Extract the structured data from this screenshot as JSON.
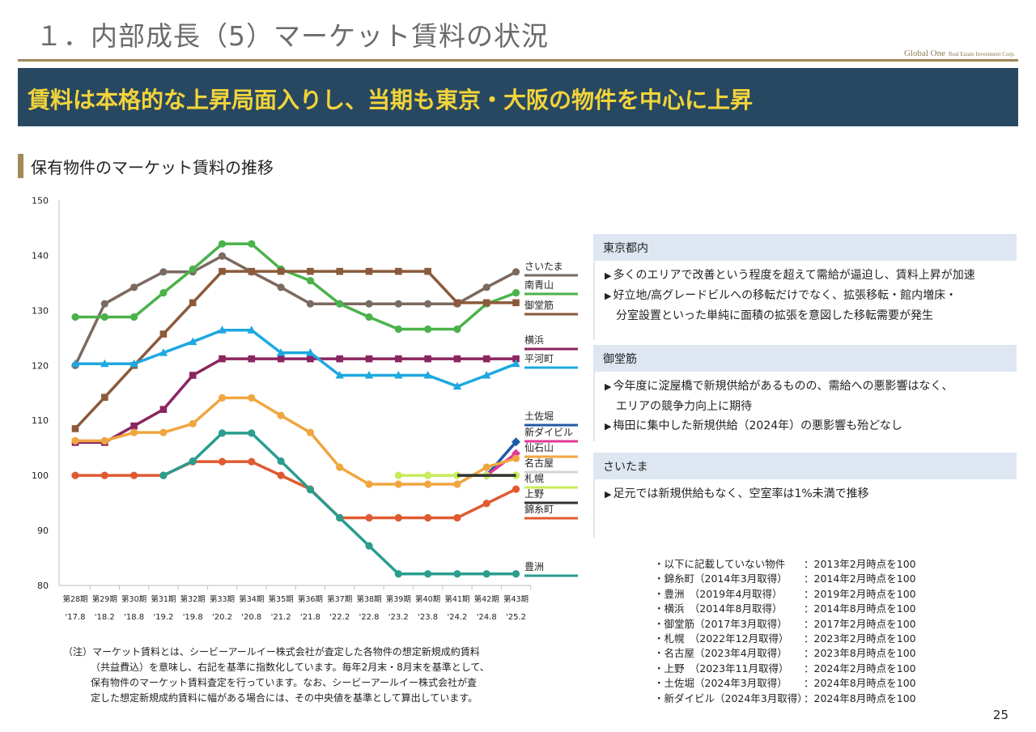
{
  "slide": {
    "title": "１．内部成長（5）マーケット賃料の状況",
    "brand_main": "Global One",
    "brand_sub": "Real Estate Investment Corp.",
    "headline": "賃料は本格的な上昇局面入りし、当期も東京・大阪の物件を中心に上昇",
    "section_title": "保有物件のマーケット賃料の推移",
    "page_number": "25"
  },
  "panels": [
    {
      "title": "東京都内",
      "bullets": [
        {
          "lines": [
            "多くのエリアで改善という程度を超えて需給が逼迫し、賃料上昇が加速"
          ]
        },
        {
          "lines": [
            "好立地/高グレードビルへの移転だけでなく、拡張移転・館内増床・",
            "分室設置といった単純に面積の拡張を意図した移転需要が発生"
          ]
        }
      ]
    },
    {
      "title": "御堂筋",
      "bullets": [
        {
          "lines": [
            "今年度に淀屋橋で新規供給があるものの、需給への悪影響はなく、",
            "エリアの競争力向上に期待"
          ]
        },
        {
          "lines": [
            "梅田に集中した新規供給（2024年）の悪影響も殆どなし"
          ]
        }
      ]
    },
    {
      "title": "さいたま",
      "bullets": [
        {
          "lines": [
            "足元では新規供給もなく、空室率は1%未満で推移"
          ]
        }
      ]
    }
  ],
  "notes": [
    {
      "left": "・以下に記載していない物件",
      "right": "：2013年2月時点を100"
    },
    {
      "left": "・錦糸町（2014年3月取得）",
      "right": "：2014年2月時点を100"
    },
    {
      "left": "・豊洲　（2019年4月取得）",
      "right": "：2019年2月時点を100"
    },
    {
      "left": "・横浜　（2014年8月取得）",
      "right": "：2014年8月時点を100"
    },
    {
      "left": "・御堂筋（2017年3月取得）",
      "right": "：2017年2月時点を100"
    },
    {
      "left": "・札幌　（2022年12月取得）",
      "right": "：2023年2月時点を100"
    },
    {
      "left": "・名古屋（2023年4月取得）",
      "right": "：2023年8月時点を100"
    },
    {
      "left": "・上野　（2023年11月取得）",
      "right": "：2024年2月時点を100"
    },
    {
      "left": "・土佐堀（2024年3月取得）",
      "right": "：2024年8月時点を100"
    },
    {
      "left": "・新ダイビル（2024年3月取得）",
      "right": "：2024年8月時点を100"
    }
  ],
  "footnote": [
    "（注）マーケット賃料とは、シービーアールイー株式会社が査定した各物件の想定新規成約賃料",
    "（共益費込）を意味し、右記を基準に指数化しています。毎年2月末・8月末を基準として、",
    "保有物件のマーケット賃料査定を行っています。なお、シービーアールイー株式会社が査",
    "定した想定新規成約賃料に幅がある場合には、その中央値を基準として算出しています。"
  ],
  "chart_data": {
    "type": "line",
    "title": "",
    "xlabel": "",
    "ylabel": "",
    "ylim": [
      80,
      150
    ],
    "yticks": [
      80,
      90,
      100,
      110,
      120,
      130,
      140,
      150
    ],
    "categories": [
      "第28期",
      "第29期",
      "第30期",
      "第31期",
      "第32期",
      "第33期",
      "第34期",
      "第35期",
      "第36期",
      "第37期",
      "第38期",
      "第39期",
      "第40期",
      "第41期",
      "第42期",
      "第43期"
    ],
    "categories_dates": [
      "'17.8",
      "'18.2",
      "'18.8",
      "'19.2",
      "'19.8",
      "'20.2",
      "'20.8",
      "'21.2",
      "'21.8",
      "'22.2",
      "'22.8",
      "'23.2",
      "'23.8",
      "'24.2",
      "'24.8",
      "'25.2"
    ],
    "grid": false,
    "legend": "right",
    "series": [
      {
        "name": "さいたま",
        "color": "#7b6a60",
        "marker": "circle",
        "values": [
          120,
          131.2,
          134.2,
          137,
          137,
          139.9,
          137,
          134.2,
          131.2,
          131.2,
          131.2,
          131.2,
          131.2,
          131.2,
          134.2,
          137
        ]
      },
      {
        "name": "南青山",
        "color": "#4ab24a",
        "marker": "circle",
        "values": [
          128.8,
          128.8,
          128.8,
          133.2,
          137.5,
          142.1,
          142.1,
          137.5,
          135.4,
          131.2,
          128.8,
          126.6,
          126.6,
          126.6,
          131.2,
          133.2
        ]
      },
      {
        "name": "御堂筋",
        "color": "#8b5a3a",
        "marker": "square",
        "values": [
          108.5,
          114.2,
          120,
          125.7,
          131.4,
          137.1,
          137.1,
          137.1,
          137.1,
          137.1,
          137.1,
          137.1,
          137.1,
          131.4,
          131.4,
          131.4
        ]
      },
      {
        "name": "横浜",
        "color": "#8b2560",
        "marker": "square",
        "values": [
          106,
          106,
          109,
          112,
          118.2,
          121.2,
          121.2,
          121.2,
          121.2,
          121.2,
          121.2,
          121.2,
          121.2,
          121.2,
          121.2,
          121.2
        ]
      },
      {
        "name": "平河町",
        "color": "#1ea8e0",
        "marker": "triangle",
        "values": [
          120.3,
          120.3,
          120.3,
          122.3,
          124.3,
          126.4,
          126.4,
          122.3,
          122.3,
          118.2,
          118.2,
          118.2,
          118.2,
          116.2,
          118.2,
          120.3
        ]
      },
      {
        "name": "土佐堀",
        "color": "#1e5aa8",
        "marker": "diamond",
        "values": [
          null,
          null,
          null,
          null,
          null,
          null,
          null,
          null,
          null,
          null,
          null,
          null,
          null,
          null,
          100,
          106.1
        ]
      },
      {
        "name": "新ダイビル",
        "color": "#e0389a",
        "marker": "diamond",
        "values": [
          null,
          null,
          null,
          null,
          null,
          null,
          null,
          null,
          null,
          null,
          null,
          null,
          null,
          null,
          100,
          104
        ]
      },
      {
        "name": "仙石山",
        "color": "#f0a640",
        "marker": "circle",
        "values": [
          106.3,
          106.3,
          107.8,
          107.8,
          109.4,
          114.1,
          114.1,
          110.9,
          107.8,
          101.5,
          98.4,
          98.4,
          98.4,
          98.4,
          101.5,
          103.1
        ]
      },
      {
        "name": "名古屋",
        "color": "#d4d4d4",
        "marker": "circle",
        "values": [
          null,
          null,
          null,
          null,
          null,
          null,
          null,
          null,
          null,
          null,
          null,
          null,
          100,
          100,
          100,
          100
        ]
      },
      {
        "name": "札幌",
        "color": "#c8ec5a",
        "marker": "circle",
        "values": [
          null,
          null,
          null,
          null,
          null,
          null,
          null,
          null,
          null,
          null,
          null,
          100,
          100,
          100,
          100,
          100
        ]
      },
      {
        "name": "上野",
        "color": "#333333",
        "marker": "none",
        "values": [
          null,
          null,
          null,
          null,
          null,
          null,
          null,
          null,
          null,
          null,
          null,
          null,
          null,
          100,
          100,
          100
        ]
      },
      {
        "name": "錦糸町",
        "color": "#e05a30",
        "marker": "circle",
        "values": [
          100,
          100,
          100,
          100,
          102.5,
          102.5,
          102.5,
          100,
          97.5,
          92.3,
          92.3,
          92.3,
          92.3,
          92.3,
          94.9,
          97.5
        ]
      },
      {
        "name": "豊洲",
        "color": "#2a9d8f",
        "marker": "circle",
        "values": [
          null,
          null,
          null,
          100,
          102.6,
          107.7,
          107.7,
          102.6,
          97.4,
          92.3,
          87.2,
          82.1,
          82.1,
          82.1,
          82.1,
          82.1
        ]
      }
    ]
  }
}
